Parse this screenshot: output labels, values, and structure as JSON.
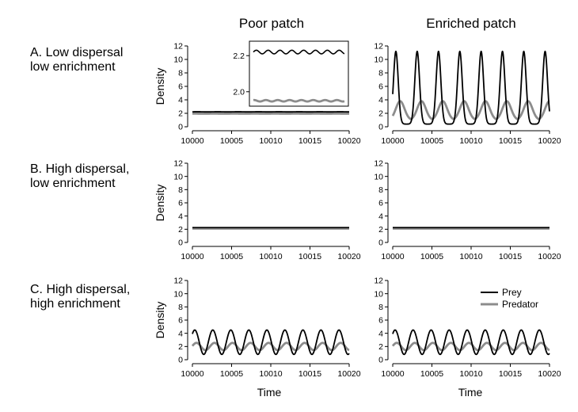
{
  "column_titles": [
    "Poor patch",
    "Enriched patch"
  ],
  "row_labels": [
    [
      "A. Low dispersal",
      "low enrichment"
    ],
    [
      "B. High dispersal,",
      "low enrichment"
    ],
    [
      "C. High dispersal,",
      "high enrichment"
    ]
  ],
  "ylabel": "Density",
  "xlabel": "Time",
  "legend": {
    "entries": [
      "Prey",
      "Predator"
    ],
    "placement": "top-right of panel C-enriched"
  },
  "colors": {
    "prey": "#000000",
    "predator": "#8c8c8c"
  },
  "chart_data": [
    {
      "type": "line",
      "id": "A-poor",
      "x_range": [
        10000,
        10020
      ],
      "ylim": [
        0,
        12
      ],
      "x_ticks": [
        10000,
        10005,
        10010,
        10015,
        10020
      ],
      "y_ticks": [
        0,
        2,
        4,
        6,
        8,
        10,
        12
      ],
      "series": [
        {
          "name": "Prey",
          "model": "sine",
          "mean": 2.22,
          "amplitude": 0.01,
          "period": 2.6,
          "phase": 0
        },
        {
          "name": "Predator",
          "model": "sine",
          "mean": 1.95,
          "amplitude": 0.004,
          "period": 2.6,
          "phase": 1.2
        }
      ],
      "inset": {
        "x_range": [
          10000,
          10020
        ],
        "ylim": [
          1.92,
          2.28
        ],
        "y_ticks": [
          2.0,
          2.2
        ],
        "series": [
          {
            "name": "Prey",
            "model": "sine",
            "mean": 2.22,
            "amplitude": 0.01,
            "period": 2.6,
            "phase": 0
          },
          {
            "name": "Predator",
            "model": "sine",
            "mean": 1.95,
            "amplitude": 0.004,
            "period": 2.6,
            "phase": 1.2
          }
        ]
      }
    },
    {
      "type": "line",
      "id": "A-enriched",
      "x_range": [
        10000,
        10020
      ],
      "ylim": [
        0,
        12
      ],
      "x_ticks": [
        10000,
        10005,
        10010,
        10015,
        10020
      ],
      "y_ticks": [
        0,
        2,
        4,
        6,
        8,
        10,
        12
      ],
      "series": [
        {
          "name": "Prey",
          "model": "spike",
          "base": 0.4,
          "peak": 11.2,
          "period": 2.72,
          "peak_at": 10000.4,
          "width": 0.3
        },
        {
          "name": "Predator",
          "model": "hump",
          "base": 1.0,
          "peak": 3.8,
          "period": 2.72,
          "peak_at": 10000.95,
          "width": 0.55
        }
      ]
    },
    {
      "type": "line",
      "id": "B-poor",
      "x_range": [
        10000,
        10020
      ],
      "ylim": [
        0,
        12
      ],
      "x_ticks": [
        10000,
        10005,
        10010,
        10015,
        10020
      ],
      "y_ticks": [
        0,
        2,
        4,
        6,
        8,
        10,
        12
      ],
      "series": [
        {
          "name": "Prey",
          "model": "sine",
          "mean": 2.25,
          "amplitude": 0,
          "period": 2.6,
          "phase": 0
        },
        {
          "name": "Predator",
          "model": "sine",
          "mean": 2.1,
          "amplitude": 0,
          "period": 2.6,
          "phase": 0
        }
      ]
    },
    {
      "type": "line",
      "id": "B-enriched",
      "x_range": [
        10000,
        10020
      ],
      "ylim": [
        0,
        12
      ],
      "x_ticks": [
        10000,
        10005,
        10010,
        10015,
        10020
      ],
      "y_ticks": [
        0,
        2,
        4,
        6,
        8,
        10,
        12
      ],
      "series": [
        {
          "name": "Prey",
          "model": "sine",
          "mean": 2.25,
          "amplitude": 0,
          "period": 2.6,
          "phase": 0
        },
        {
          "name": "Predator",
          "model": "sine",
          "mean": 2.1,
          "amplitude": 0,
          "period": 2.6,
          "phase": 0
        }
      ]
    },
    {
      "type": "line",
      "id": "C-poor",
      "x_range": [
        10000,
        10020
      ],
      "ylim": [
        0,
        12
      ],
      "x_ticks": [
        10000,
        10005,
        10010,
        10015,
        10020
      ],
      "y_ticks": [
        0,
        2,
        4,
        6,
        8,
        10,
        12
      ],
      "series": [
        {
          "name": "Prey",
          "model": "sine",
          "mean": 2.65,
          "amplitude": 1.85,
          "period": 2.3,
          "phase": 0.75
        },
        {
          "name": "Predator",
          "model": "sine",
          "mean": 2.0,
          "amplitude": 0.55,
          "period": 2.3,
          "phase": 0.15
        }
      ]
    },
    {
      "type": "line",
      "id": "C-enriched",
      "x_range": [
        10000,
        10020
      ],
      "ylim": [
        0,
        12
      ],
      "x_ticks": [
        10000,
        10005,
        10010,
        10015,
        10020
      ],
      "y_ticks": [
        0,
        2,
        4,
        6,
        8,
        10,
        12
      ],
      "legend": [
        "Prey",
        "Predator"
      ],
      "series": [
        {
          "name": "Prey",
          "model": "sine",
          "mean": 2.65,
          "amplitude": 1.85,
          "period": 2.3,
          "phase": 0.75
        },
        {
          "name": "Predator",
          "model": "sine",
          "mean": 2.0,
          "amplitude": 0.55,
          "period": 2.3,
          "phase": 0.15
        }
      ]
    }
  ]
}
